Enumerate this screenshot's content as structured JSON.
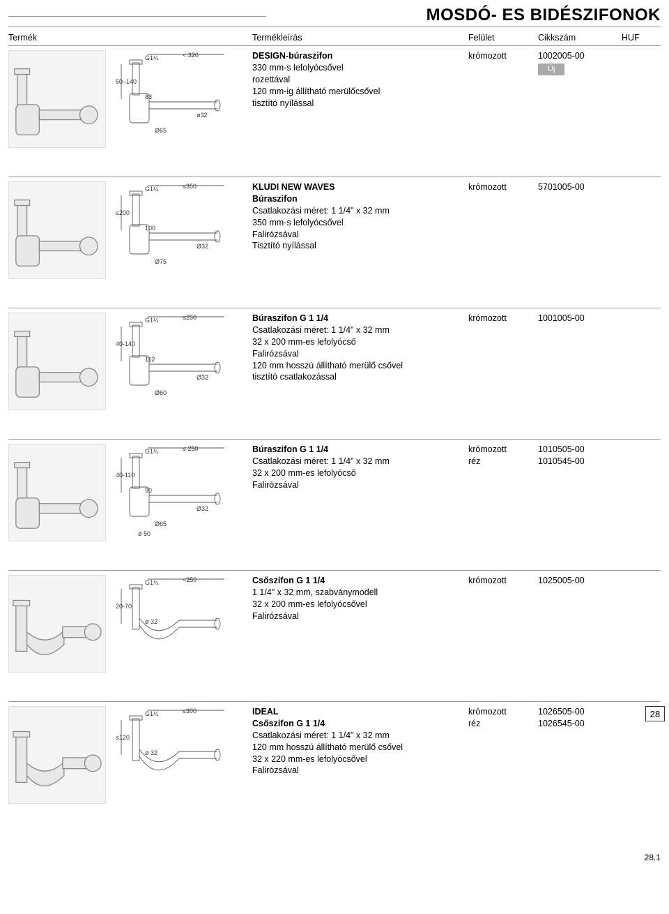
{
  "page": {
    "title": "MOSDÓ- ES BIDÉSZIFONOK",
    "side_page_num": "28",
    "footer_num": "28.1"
  },
  "headers": {
    "product": "Termék",
    "desc": "Termékleírás",
    "finish": "Felület",
    "code": "Cikkszám",
    "price": "HUF"
  },
  "rows": [
    {
      "desc_lines": [
        {
          "text": "DESIGN-búraszifon",
          "bold": true
        },
        {
          "text": "330 mm-s lefolyócsővel",
          "bold": false
        },
        {
          "text": "rozettával",
          "bold": false
        },
        {
          "text": "120 mm-ig állítható merülőcsővel",
          "bold": false
        },
        {
          "text": "tisztító nyílással",
          "bold": false
        }
      ],
      "finishes": [
        "krómozott"
      ],
      "codes": [
        "1002005-00"
      ],
      "badge": "Új",
      "diagram": {
        "labels": [
          "G1¼",
          "< 320",
          "50–140",
          "83",
          "ø32",
          "Ø65"
        ]
      }
    },
    {
      "desc_lines": [
        {
          "text": "KLUDI NEW WAVES",
          "bold": true
        },
        {
          "text": "Búraszifon",
          "bold": true
        },
        {
          "text": "Csatlakozási méret: 1 1/4\" x 32 mm",
          "bold": false
        },
        {
          "text": "350 mm-s lefolyócsővel",
          "bold": false
        },
        {
          "text": "Falirózsával",
          "bold": false
        },
        {
          "text": "Tisztító nyílással",
          "bold": false
        }
      ],
      "finishes": [
        "krómozott"
      ],
      "codes": [
        "5701005-00"
      ],
      "diagram": {
        "labels": [
          "G1¼",
          "≤350",
          "≤200",
          "100",
          "Ø32",
          "Ø75"
        ]
      }
    },
    {
      "desc_lines": [
        {
          "text": "Búraszifon G 1 1/4",
          "bold": true
        },
        {
          "text": "Csatlakozási méret: 1 1/4\" x 32 mm",
          "bold": false
        },
        {
          "text": "32 x 200 mm-es lefolyócső",
          "bold": false
        },
        {
          "text": "Falirózsával",
          "bold": false
        },
        {
          "text": "120 mm hosszú állítható merülő csővel",
          "bold": false
        },
        {
          "text": "tisztító csatlakozással",
          "bold": false
        }
      ],
      "finishes": [
        "krómozott"
      ],
      "codes": [
        "1001005-00"
      ],
      "diagram": {
        "labels": [
          "G1¼",
          "≤250",
          "40-140",
          "112",
          "Ø32",
          "Ø60"
        ]
      }
    },
    {
      "desc_lines": [
        {
          "text": "Búraszifon G 1 1/4",
          "bold": true
        },
        {
          "text": "Csatlakozási méret: 1 1/4\" x 32 mm",
          "bold": false
        },
        {
          "text": "32 x 200 mm-es lefolyócső",
          "bold": false
        },
        {
          "text": "Falirózsával",
          "bold": false
        }
      ],
      "finishes": [
        "krómozott",
        "réz"
      ],
      "codes": [
        "1010505-00",
        "1010545-00"
      ],
      "diagram": {
        "labels": [
          "G1¼",
          "≤ 250",
          "40-110",
          "90",
          "Ø32",
          "Ø65",
          "ø 50"
        ]
      }
    },
    {
      "desc_lines": [
        {
          "text": "Csőszifon G 1 1/4",
          "bold": true
        },
        {
          "text": "1 1/4\" x 32 mm, szabványmodell",
          "bold": false
        },
        {
          "text": "32 x 200 mm-es lefolyócsővel",
          "bold": false
        },
        {
          "text": "Falirózsával",
          "bold": false
        }
      ],
      "finishes": [
        "krómozott"
      ],
      "codes": [
        "1025005-00"
      ],
      "diagram": {
        "labels": [
          "G1¼",
          "<250",
          "20-70",
          "ø 32"
        ]
      }
    },
    {
      "desc_lines": [
        {
          "text": "IDEAL",
          "bold": true
        },
        {
          "text": "Csőszifon G 1 1/4",
          "bold": true
        },
        {
          "text": "Csatlakozási méret: 1 1/4\" x 32 mm",
          "bold": false
        },
        {
          "text": "120 mm hosszú állítható merülő csővel",
          "bold": false
        },
        {
          "text": "32 x 220 mm-es lefolyócsővel",
          "bold": false
        },
        {
          "text": "Falirózsával",
          "bold": false
        }
      ],
      "finishes": [
        "krómozott",
        "réz"
      ],
      "codes": [
        "1026505-00",
        "1026545-00"
      ],
      "diagram": {
        "labels": [
          "G1¼",
          "≤300",
          "≤120",
          "ø 32"
        ]
      },
      "side_box": true
    }
  ],
  "style": {
    "title_fontsize": 24,
    "body_fontsize": 12.5,
    "row_min_height": 188,
    "border_color": "#999999",
    "badge_bg": "#a9a9a9",
    "badge_fg": "#ffffff",
    "background": "#ffffff",
    "text_color": "#000000"
  }
}
